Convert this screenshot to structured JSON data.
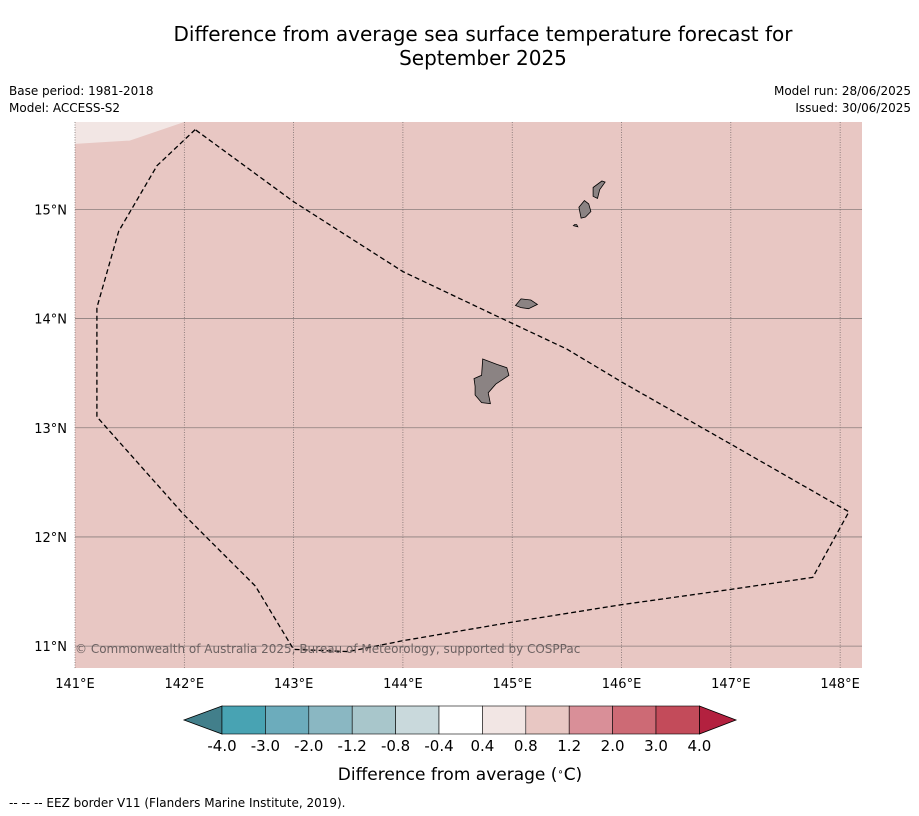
{
  "title_line1": "Difference from average sea surface temperature forecast for",
  "title_line2": "September 2025",
  "meta": {
    "base_period": "Base period: 1981-2018",
    "model": "Model: ACCESS-S2",
    "model_run": "Model run: 28/06/2025",
    "issued": "Issued: 30/06/2025"
  },
  "map": {
    "lon_range": [
      141.0,
      148.2
    ],
    "lat_range": [
      10.8,
      15.8
    ],
    "lon_ticks": [
      141,
      142,
      143,
      144,
      145,
      146,
      147,
      148
    ],
    "lon_labels": [
      "141°E",
      "142°E",
      "143°E",
      "144°E",
      "145°E",
      "146°E",
      "147°E",
      "148°E"
    ],
    "lat_ticks": [
      11,
      12,
      13,
      14,
      15
    ],
    "lat_labels": [
      "11°N",
      "12°N",
      "13°N",
      "14°N",
      "15°N"
    ],
    "fill_color": "#e8c7c3",
    "corner_fill_color": "#f2e6e4",
    "land_color": "#8b8383",
    "copyright": "© Commonwealth of Australia 2025, Bureau of Meteorology, supported by COSPPac",
    "eez_border": [
      [
        142.1,
        15.73
      ],
      [
        141.75,
        15.4
      ],
      [
        141.4,
        14.8
      ],
      [
        141.2,
        14.1
      ],
      [
        141.2,
        13.1
      ],
      [
        142.0,
        12.2
      ],
      [
        142.65,
        11.55
      ],
      [
        143.0,
        10.97
      ],
      [
        143.5,
        10.95
      ],
      [
        144.0,
        11.05
      ],
      [
        145.0,
        11.22
      ],
      [
        146.0,
        11.38
      ],
      [
        147.0,
        11.52
      ],
      [
        147.75,
        11.63
      ],
      [
        148.08,
        12.23
      ],
      [
        147.0,
        12.85
      ],
      [
        146.0,
        13.42
      ],
      [
        145.5,
        13.72
      ],
      [
        144.8,
        14.05
      ],
      [
        144.0,
        14.43
      ],
      [
        143.0,
        15.07
      ],
      [
        142.1,
        15.73
      ]
    ],
    "islands": [
      [
        [
          144.73,
          13.63
        ],
        [
          144.86,
          13.58
        ],
        [
          144.95,
          13.55
        ],
        [
          144.97,
          13.48
        ],
        [
          144.85,
          13.4
        ],
        [
          144.78,
          13.32
        ],
        [
          144.8,
          13.22
        ],
        [
          144.72,
          13.23
        ],
        [
          144.66,
          13.3
        ],
        [
          144.66,
          13.38
        ],
        [
          144.65,
          13.45
        ],
        [
          144.72,
          13.48
        ]
      ],
      [
        [
          145.08,
          14.18
        ],
        [
          145.17,
          14.17
        ],
        [
          145.23,
          14.13
        ],
        [
          145.15,
          14.09
        ],
        [
          145.08,
          14.1
        ],
        [
          145.03,
          14.12
        ]
      ],
      [
        [
          145.61,
          15.02
        ],
        [
          145.66,
          15.08
        ],
        [
          145.7,
          15.05
        ],
        [
          145.72,
          14.98
        ],
        [
          145.67,
          14.93
        ],
        [
          145.63,
          14.92
        ]
      ],
      [
        [
          145.74,
          15.2
        ],
        [
          145.82,
          15.26
        ],
        [
          145.85,
          15.25
        ],
        [
          145.8,
          15.18
        ],
        [
          145.78,
          15.1
        ],
        [
          145.74,
          15.12
        ]
      ],
      [
        [
          145.57,
          14.86
        ],
        [
          145.59,
          14.86
        ],
        [
          145.6,
          14.84
        ],
        [
          145.56,
          14.85
        ]
      ]
    ]
  },
  "colorbar": {
    "label": "Difference from average ($^\\circ$C)",
    "label_text": "Difference from average (",
    "label_unit": "C)",
    "label_degree": "∘",
    "tick_labels": [
      "-4.0",
      "-3.0",
      "-2.0",
      "-1.2",
      "-0.8",
      "-0.4",
      "0.4",
      "0.8",
      "1.2",
      "2.0",
      "3.0",
      "4.0"
    ],
    "under_color": "#427f8b",
    "over_color": "#b3213f",
    "colors": [
      "#48a3b3",
      "#6cacbc",
      "#8ab7c2",
      "#a8c6cb",
      "#c9d9dc",
      "#ffffff",
      "#f2e6e4",
      "#e8c7c3",
      "#d98f98",
      "#cd6a75",
      "#c34b5a"
    ]
  },
  "footer": "--  --  -- EEZ border V11 (Flanders Marine Institute, 2019)."
}
